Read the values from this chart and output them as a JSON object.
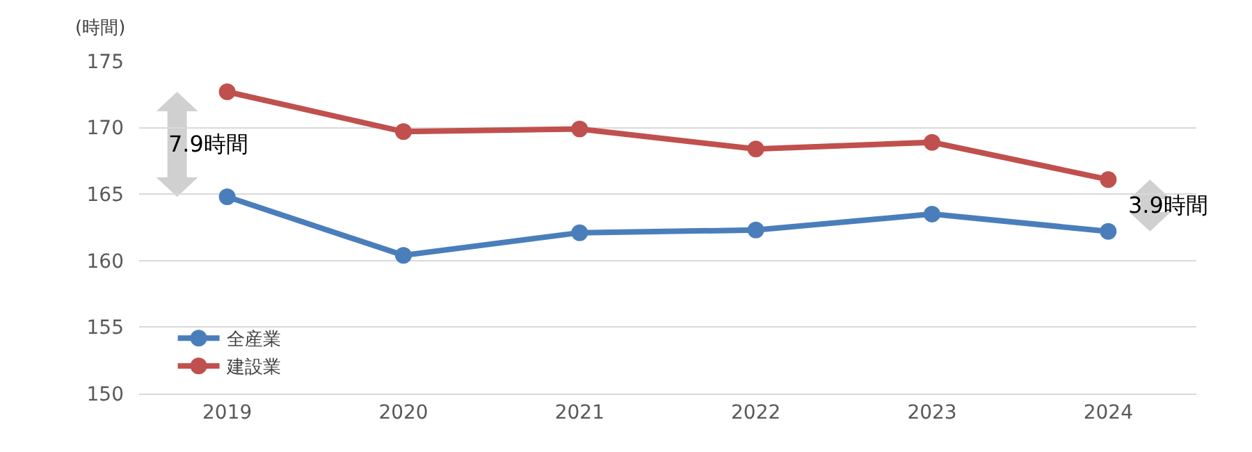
{
  "chart_data": {
    "type": "line",
    "ylabel": "(時間)",
    "categories": [
      "2019",
      "2020",
      "2021",
      "2022",
      "2023",
      "2024"
    ],
    "series": [
      {
        "name": "全産業",
        "color": "#4a7ebb",
        "values": [
          164.8,
          160.4,
          162.1,
          162.3,
          163.5,
          162.2
        ]
      },
      {
        "name": "建設業",
        "color": "#c0504d",
        "values": [
          172.7,
          169.7,
          169.9,
          168.4,
          168.9,
          166.1
        ]
      }
    ],
    "ylim": [
      150,
      175
    ],
    "yticks": [
      150,
      155,
      160,
      165,
      170,
      175
    ],
    "grid": "y",
    "legend": "bottom left",
    "marker": "circle",
    "line_style": "solid",
    "annotations": [
      "7.9時間",
      "3.9時間"
    ]
  }
}
